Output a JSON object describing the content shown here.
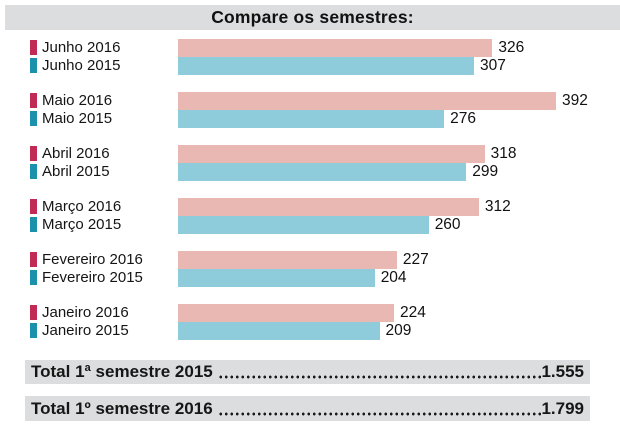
{
  "title": "Compare os semestres:",
  "colors": {
    "bar_2016": "#eab8b3",
    "bar_2015": "#8ecbdb",
    "marker_2016": "#c22a56",
    "marker_2015": "#1b91ac",
    "panel_gray": "#dcddde",
    "text": "#1a1a1a"
  },
  "chart_data": {
    "type": "bar",
    "orientation": "horizontal",
    "title": "Compare os semestres:",
    "categories": [
      "Junho",
      "Maio",
      "Abril",
      "Março",
      "Fevereiro",
      "Janeiro"
    ],
    "series": [
      {
        "name": "2016",
        "color": "#eab8b3",
        "marker_color": "#c22a56",
        "values": [
          326,
          392,
          318,
          312,
          227,
          224
        ]
      },
      {
        "name": "2015",
        "color": "#8ecbdb",
        "marker_color": "#1b91ac",
        "values": [
          307,
          276,
          299,
          260,
          204,
          209
        ]
      }
    ],
    "xlim": [
      0,
      392
    ],
    "grid": false,
    "legend_position": "inline-left",
    "groups": [
      {
        "rows": [
          {
            "label": "Junho 2016",
            "value": 326
          },
          {
            "label": "Junho 2015",
            "value": 307
          }
        ]
      },
      {
        "rows": [
          {
            "label": "Maio 2016",
            "value": 392
          },
          {
            "label": "Maio 2015",
            "value": 276
          }
        ]
      },
      {
        "rows": [
          {
            "label": "Abril 2016",
            "value": 318
          },
          {
            "label": "Abril 2015",
            "value": 299
          }
        ]
      },
      {
        "rows": [
          {
            "label": "Março 2016",
            "value": 312
          },
          {
            "label": "Março 2015",
            "value": 260
          }
        ]
      },
      {
        "rows": [
          {
            "label": "Fevereiro 2016",
            "value": 227
          },
          {
            "label": "Fevereiro 2015",
            "value": 204
          }
        ]
      },
      {
        "rows": [
          {
            "label": "Janeiro 2016",
            "value": 224
          },
          {
            "label": "Janeiro 2015",
            "value": 209
          }
        ]
      }
    ]
  },
  "totals": [
    {
      "label": "Total 1ª semestre 2015",
      "value": "1.555"
    },
    {
      "label": "Total 1º semestre 2016",
      "value": "1.799"
    }
  ]
}
